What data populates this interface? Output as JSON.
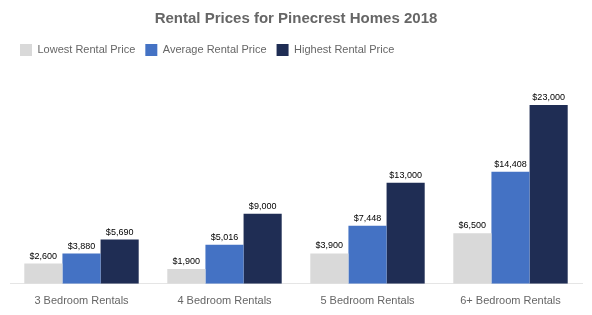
{
  "chart_data": {
    "type": "bar",
    "title": "Rental Prices for Pinecrest Homes 2018",
    "categories": [
      "3 Bedroom Rentals",
      "4 Bedroom Rentals",
      "5 Bedroom Rentals",
      "6+ Bedroom Rentals"
    ],
    "series": [
      {
        "name": "Lowest Rental Price",
        "color": "#d9d9d9",
        "values": [
          2600,
          1900,
          3900,
          6500
        ],
        "value_labels": [
          "$2,600",
          "$1,900",
          "$3,900",
          "$6,500"
        ]
      },
      {
        "name": "Average Rental Price",
        "color": "#4472c4",
        "values": [
          3880,
          5016,
          7448,
          14408
        ],
        "value_labels": [
          "$3,880",
          "$5,016",
          "$7,448",
          "$14,408"
        ]
      },
      {
        "name": "Highest Rental Price",
        "color": "#1f2d54",
        "values": [
          5690,
          9000,
          13000,
          23000
        ],
        "value_labels": [
          "$5,690",
          "$9,000",
          "$13,000",
          "$23,000"
        ]
      }
    ],
    "ylim": [
      0,
      28000
    ],
    "grid": false,
    "legend": "upper left",
    "data_labels": true,
    "tick_labels": "x"
  }
}
